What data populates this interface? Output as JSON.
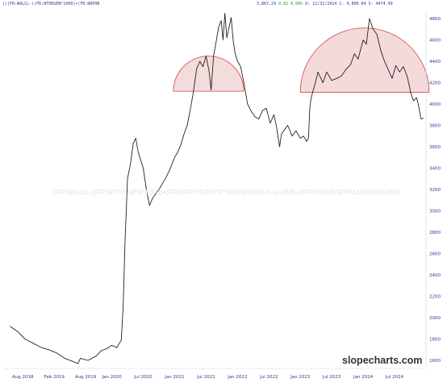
{
  "header": {
    "formula": "()(FR:WALCL-((FR:WTREGEN*1000)+(FR:RRPON",
    "close": "3,867.29",
    "change": "0.02 0.00%",
    "date": "D: 12/31/2024",
    "c_value": "C: 4,800.64",
    "s_value": "S: 4474.99"
  },
  "watermark": "(FR:WALCL-((FR:WTREGEN*1000)+(FR:RRPONTSYD*1000))/1000)/1.1)-1625+(FR:H41RESPPALDKNWW/250)",
  "brand": "slopecharts.com",
  "colors": {
    "line": "#222222",
    "arch_fill": "#f3d6d6",
    "arch_stroke": "#d64545",
    "axis_text": "#2a3c8a"
  },
  "chart_data": {
    "type": "line",
    "x_start": "2018-05",
    "x_end": "2024-12",
    "ylim": [
      1500,
      4900
    ],
    "yticks": [
      1600,
      1800,
      2000,
      2200,
      2400,
      2600,
      2800,
      3000,
      3200,
      3400,
      3600,
      3800,
      4000,
      4200,
      4400,
      4600,
      4800
    ],
    "xticks": [
      "Aug 2018",
      "Feb 2019",
      "Aug 2019",
      "Jan 2020",
      "Jul 2020",
      "Jan 2021",
      "Jul 2021",
      "Jan 2022",
      "Jul 2022",
      "Jan 2023",
      "Jul 2023",
      "Jan 2024",
      "Jul 2024"
    ],
    "series": [
      {
        "values": [
          [
            2018.38,
            1920
          ],
          [
            2018.5,
            1870
          ],
          [
            2018.62,
            1800
          ],
          [
            2018.75,
            1760
          ],
          [
            2018.88,
            1720
          ],
          [
            2019.0,
            1700
          ],
          [
            2019.12,
            1670
          ],
          [
            2019.25,
            1620
          ],
          [
            2019.38,
            1590
          ],
          [
            2019.46,
            1570
          ],
          [
            2019.5,
            1620
          ],
          [
            2019.62,
            1600
          ],
          [
            2019.75,
            1640
          ],
          [
            2019.83,
            1690
          ],
          [
            2019.92,
            1710
          ],
          [
            2020.0,
            1740
          ],
          [
            2020.08,
            1720
          ],
          [
            2020.15,
            1790
          ],
          [
            2020.18,
            2100
          ],
          [
            2020.21,
            2700
          ],
          [
            2020.25,
            3300
          ],
          [
            2020.3,
            3450
          ],
          [
            2020.34,
            3630
          ],
          [
            2020.38,
            3680
          ],
          [
            2020.42,
            3550
          ],
          [
            2020.5,
            3400
          ],
          [
            2020.55,
            3200
          ],
          [
            2020.6,
            3050
          ],
          [
            2020.65,
            3120
          ],
          [
            2020.75,
            3200
          ],
          [
            2020.85,
            3300
          ],
          [
            2020.92,
            3380
          ],
          [
            2021.0,
            3500
          ],
          [
            2021.05,
            3550
          ],
          [
            2021.1,
            3620
          ],
          [
            2021.15,
            3720
          ],
          [
            2021.2,
            3800
          ],
          [
            2021.25,
            3950
          ],
          [
            2021.3,
            4120
          ],
          [
            2021.35,
            4330
          ],
          [
            2021.4,
            4400
          ],
          [
            2021.45,
            4350
          ],
          [
            2021.5,
            4450
          ],
          [
            2021.55,
            4300
          ],
          [
            2021.58,
            4130
          ],
          [
            2021.62,
            4450
          ],
          [
            2021.66,
            4580
          ],
          [
            2021.7,
            4720
          ],
          [
            2021.74,
            4780
          ],
          [
            2021.77,
            4600
          ],
          [
            2021.8,
            4850
          ],
          [
            2021.83,
            4620
          ],
          [
            2021.86,
            4700
          ],
          [
            2021.9,
            4810
          ],
          [
            2021.93,
            4600
          ],
          [
            2021.96,
            4480
          ],
          [
            2022.0,
            4400
          ],
          [
            2022.05,
            4350
          ],
          [
            2022.1,
            4200
          ],
          [
            2022.16,
            4000
          ],
          [
            2022.22,
            3930
          ],
          [
            2022.28,
            3880
          ],
          [
            2022.34,
            3860
          ],
          [
            2022.4,
            3940
          ],
          [
            2022.46,
            3960
          ],
          [
            2022.52,
            3820
          ],
          [
            2022.58,
            3900
          ],
          [
            2022.62,
            3790
          ],
          [
            2022.67,
            3600
          ],
          [
            2022.7,
            3720
          ],
          [
            2022.75,
            3760
          ],
          [
            2022.8,
            3800
          ],
          [
            2022.87,
            3700
          ],
          [
            2022.93,
            3750
          ],
          [
            2023.0,
            3680
          ],
          [
            2023.05,
            3700
          ],
          [
            2023.1,
            3650
          ],
          [
            2023.13,
            3680
          ],
          [
            2023.15,
            3960
          ],
          [
            2023.17,
            4050
          ],
          [
            2023.2,
            4120
          ],
          [
            2023.24,
            4200
          ],
          [
            2023.28,
            4300
          ],
          [
            2023.32,
            4250
          ],
          [
            2023.36,
            4200
          ],
          [
            2023.42,
            4300
          ],
          [
            2023.5,
            4220
          ],
          [
            2023.58,
            4240
          ],
          [
            2023.65,
            4260
          ],
          [
            2023.72,
            4320
          ],
          [
            2023.8,
            4370
          ],
          [
            2023.86,
            4470
          ],
          [
            2023.92,
            4420
          ],
          [
            2024.0,
            4600
          ],
          [
            2024.05,
            4560
          ],
          [
            2024.1,
            4800
          ],
          [
            2024.16,
            4700
          ],
          [
            2024.22,
            4650
          ],
          [
            2024.28,
            4500
          ],
          [
            2024.34,
            4400
          ],
          [
            2024.4,
            4320
          ],
          [
            2024.46,
            4240
          ],
          [
            2024.52,
            4360
          ],
          [
            2024.58,
            4300
          ],
          [
            2024.64,
            4350
          ],
          [
            2024.7,
            4260
          ],
          [
            2024.76,
            4100
          ],
          [
            2024.8,
            4030
          ],
          [
            2024.85,
            4060
          ],
          [
            2024.88,
            3990
          ],
          [
            2024.92,
            3860
          ],
          [
            2024.96,
            3867
          ]
        ]
      }
    ],
    "annotations": [
      {
        "type": "arch",
        "x_range": [
          2020.98,
          2022.1
        ],
        "base": 4120
      },
      {
        "type": "arch",
        "x_range": [
          2023.0,
          2025.05
        ],
        "base": 4110
      }
    ]
  }
}
